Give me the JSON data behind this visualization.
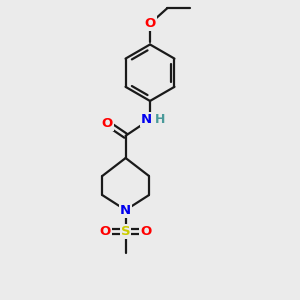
{
  "background_color": "#ebebeb",
  "bond_color": "#1a1a1a",
  "bond_width": 1.6,
  "atom_colors": {
    "O": "#ff0000",
    "N": "#0000ee",
    "S": "#cccc00",
    "H": "#4a9a9a",
    "C": "#1a1a1a"
  },
  "font_size_atom": 9.5
}
